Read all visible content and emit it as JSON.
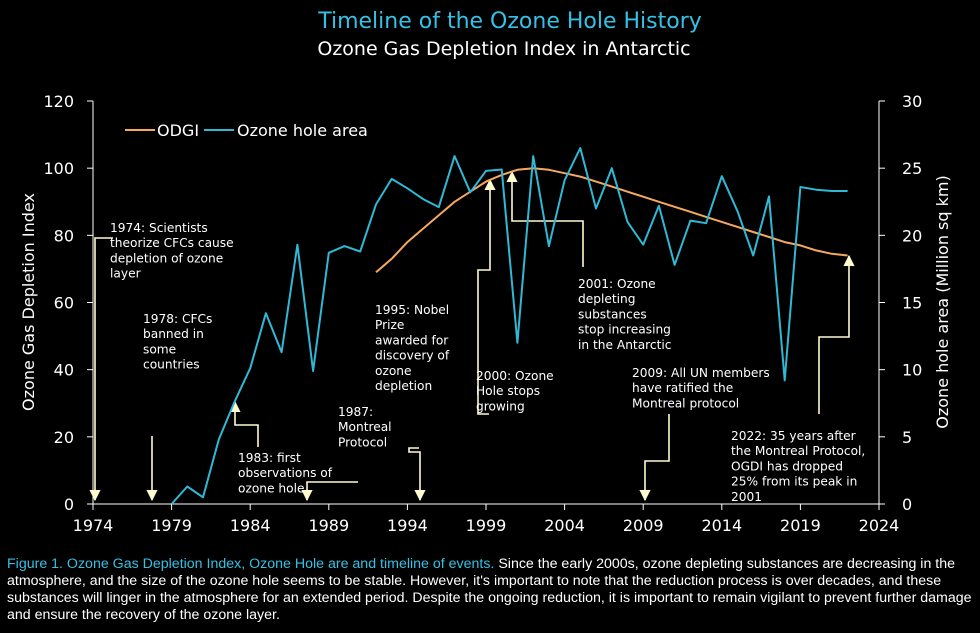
{
  "chart_data": {
    "type": "line",
    "title": "Timeline of the Ozone Hole History",
    "subtitle": "Ozone Gas Depletion Index in Antarctic",
    "xlabel": "",
    "ylabel": "Ozone Gas Depletion Index",
    "y2label": "Ozone hole area (Million sq km)",
    "xlim": [
      1974,
      2024
    ],
    "ylim": [
      0,
      120
    ],
    "y2lim": [
      0,
      30
    ],
    "xticks": [
      "1974",
      "1979",
      "1984",
      "1989",
      "1994",
      "1999",
      "2004",
      "2009",
      "2014",
      "2019",
      "2024"
    ],
    "yticks": [
      "0",
      "20",
      "40",
      "60",
      "80",
      "100",
      "120"
    ],
    "y2ticks": [
      "0",
      "5",
      "10",
      "15",
      "20",
      "25",
      "30"
    ],
    "legend": "top-left",
    "colors": {
      "odgi": "#f6a95e",
      "area": "#2fb9d6",
      "title": "#35c1e6",
      "arrow": "#fffbcf"
    },
    "series": [
      {
        "name": "ODGI",
        "axis": "left",
        "x": [
          1992,
          1993,
          1994,
          1995,
          1996,
          1997,
          1998,
          1999,
          2000,
          2001,
          2002,
          2003,
          2004,
          2005,
          2006,
          2007,
          2008,
          2009,
          2010,
          2011,
          2012,
          2013,
          2014,
          2015,
          2016,
          2017,
          2018,
          2019,
          2020,
          2021,
          2022
        ],
        "values": [
          69,
          73,
          78,
          82,
          86,
          90,
          93,
          96,
          98,
          99.5,
          100,
          99.5,
          98.5,
          97.5,
          96,
          94.5,
          93,
          91.5,
          90,
          88.5,
          87,
          85.5,
          84,
          82.5,
          81,
          79.5,
          78,
          77,
          75.5,
          74.5,
          74
        ]
      },
      {
        "name": "Ozone hole area",
        "axis": "right",
        "x": [
          1979,
          1980,
          1981,
          1982,
          1983,
          1984,
          1985,
          1986,
          1987,
          1988,
          1989,
          1990,
          1991,
          1992,
          1993,
          1994,
          1995,
          1996,
          1997,
          1998,
          1999,
          2000,
          2001,
          2002,
          2003,
          2004,
          2005,
          2006,
          2007,
          2008,
          2009,
          2010,
          2011,
          2012,
          2013,
          2014,
          2015,
          2016,
          2017,
          2018,
          2019,
          2020,
          2021,
          2022
        ],
        "values": [
          0,
          1.3,
          0.5,
          4.8,
          7.6,
          10.1,
          14.2,
          11.3,
          19.3,
          9.9,
          18.7,
          19.2,
          18.8,
          22.3,
          24.2,
          23.5,
          22.7,
          22.1,
          25.9,
          23.2,
          24.8,
          24.9,
          12,
          25.9,
          19.2,
          24.1,
          26.5,
          22,
          25,
          21,
          19.3,
          22.2,
          17.8,
          21.1,
          20.9,
          24.4,
          21.8,
          18.5,
          22.9,
          9.2,
          23.6,
          23.4,
          23.3,
          23.3
        ]
      }
    ],
    "annotations": [
      {
        "text": [
          "1974: Scientists",
          "theorize CFCs cause",
          "depletion of ozone",
          "layer"
        ]
      },
      {
        "text": [
          "1978: CFCs",
          "banned in",
          "some",
          "countries"
        ]
      },
      {
        "text": [
          "1983: first",
          "observations of",
          "ozone hole"
        ]
      },
      {
        "text": [
          "1987:",
          "Montreal",
          "Protocol"
        ]
      },
      {
        "text": [
          "1995: Nobel",
          "Prize",
          "awarded for",
          "discovery of",
          "ozone",
          "depletion"
        ]
      },
      {
        "text": [
          "2000: Ozone",
          "Hole stops",
          "growing"
        ]
      },
      {
        "text": [
          "2001: Ozone",
          "depleting",
          "substances",
          "stop increasing",
          "in the Antarctic"
        ]
      },
      {
        "text": [
          "2009: All UN members",
          "have ratified the",
          "Montreal protocol"
        ]
      },
      {
        "text": [
          "2022: 35 years after",
          "the Montreal Protocol,",
          "OGDI has dropped",
          "25% from its peak in",
          "2001"
        ]
      }
    ]
  },
  "caption": {
    "lead": "Figure 1. Ozone Gas Depletion Index, Ozone Hole are and timeline of events.",
    "body": " Since the early 2000s, ozone depleting substances are decreasing in the atmosphere, and the size of the ozone hole seems to be stable. However, it's important to note that the reduction process is over decades, and these substances will linger in the atmosphere for an extended period. Despite the ongoing reduction, it is important to remain vigilant to prevent further damage and ensure the recovery of the ozone layer."
  }
}
